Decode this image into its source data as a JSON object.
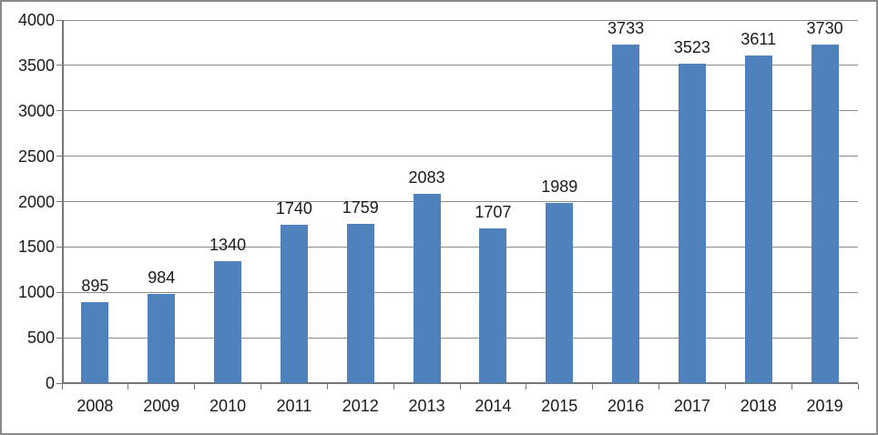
{
  "chart_data": {
    "type": "bar",
    "title": "",
    "categories": [
      "2008",
      "2009",
      "2010",
      "2011",
      "2012",
      "2013",
      "2014",
      "2015",
      "2016",
      "2017",
      "2018",
      "2019"
    ],
    "values": [
      895,
      984,
      1340,
      1740,
      1759,
      2083,
      1707,
      1989,
      3733,
      3523,
      3611,
      3730
    ],
    "xlabel": "",
    "ylabel": "",
    "ylim": [
      0,
      4000
    ],
    "ytick_step": 500,
    "yticks": [
      0,
      500,
      1000,
      1500,
      2000,
      2500,
      3000,
      3500,
      4000
    ],
    "grid": true,
    "legend": false,
    "data_labels": true,
    "bar_color": "#4f81bd"
  },
  "colors": {
    "bar": "#4f81bd",
    "gridline": "#8c8c8c",
    "axis": "#757575",
    "text": "#1a1a1a",
    "frame_border": "#8a8a8a",
    "background": "#ffffff"
  }
}
